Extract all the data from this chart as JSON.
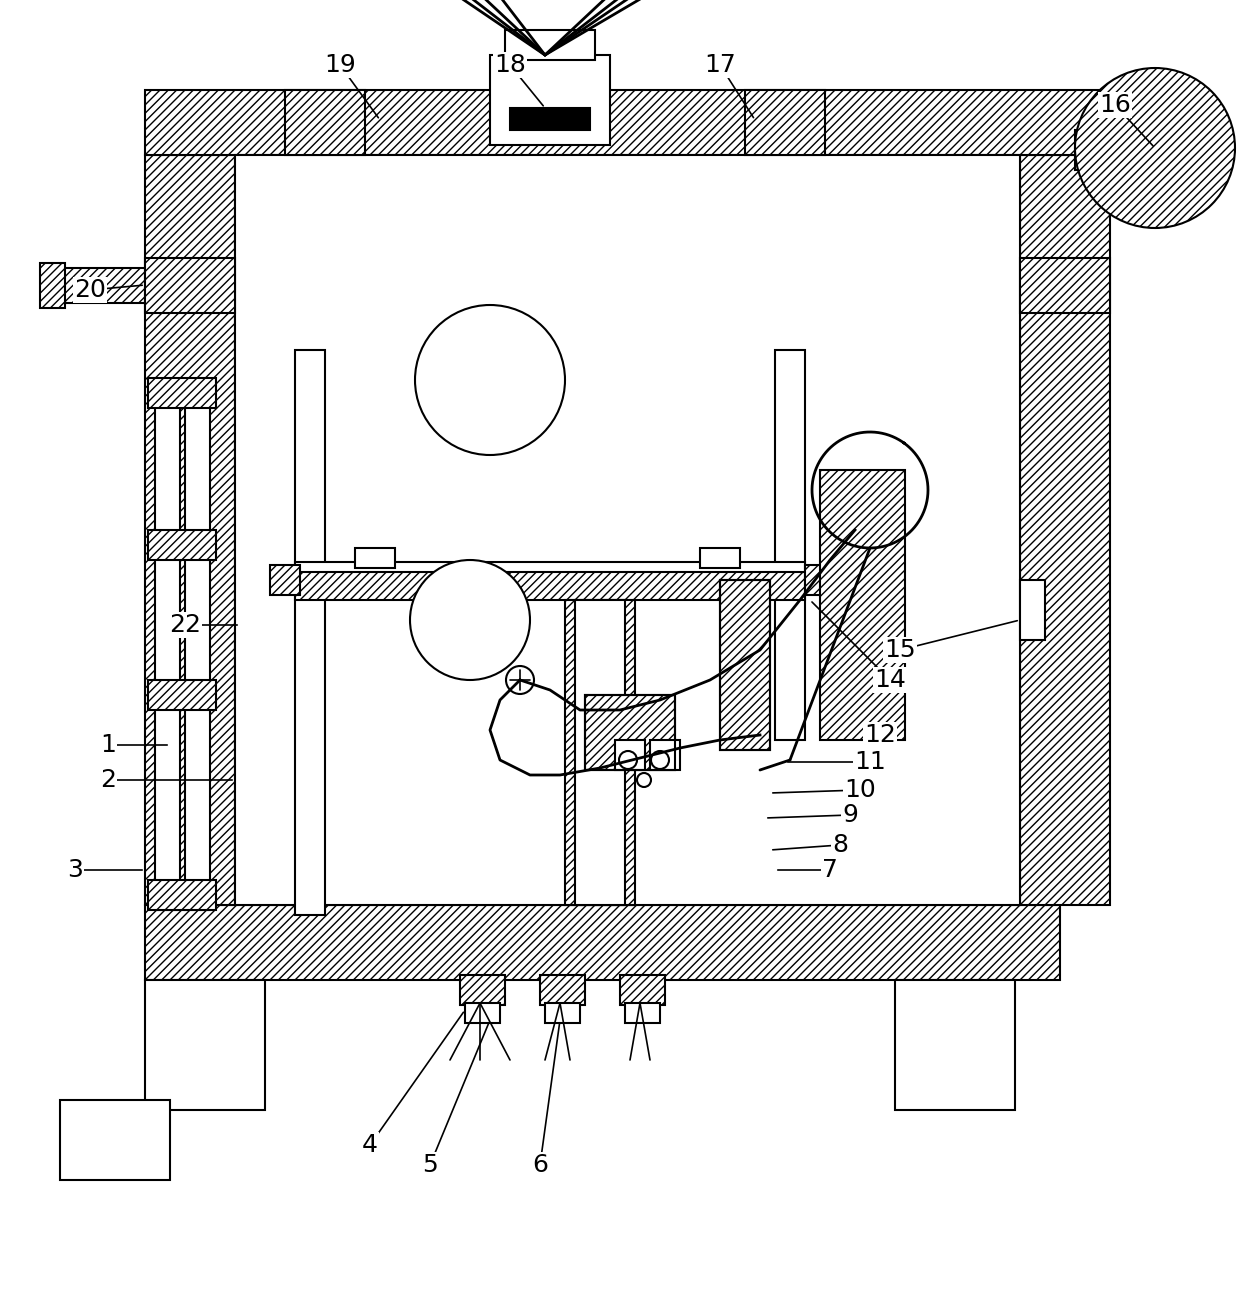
{
  "bg_color": "#ffffff",
  "lw": 1.5,
  "lw2": 2.0,
  "fig_width": 12.4,
  "fig_height": 12.94
}
